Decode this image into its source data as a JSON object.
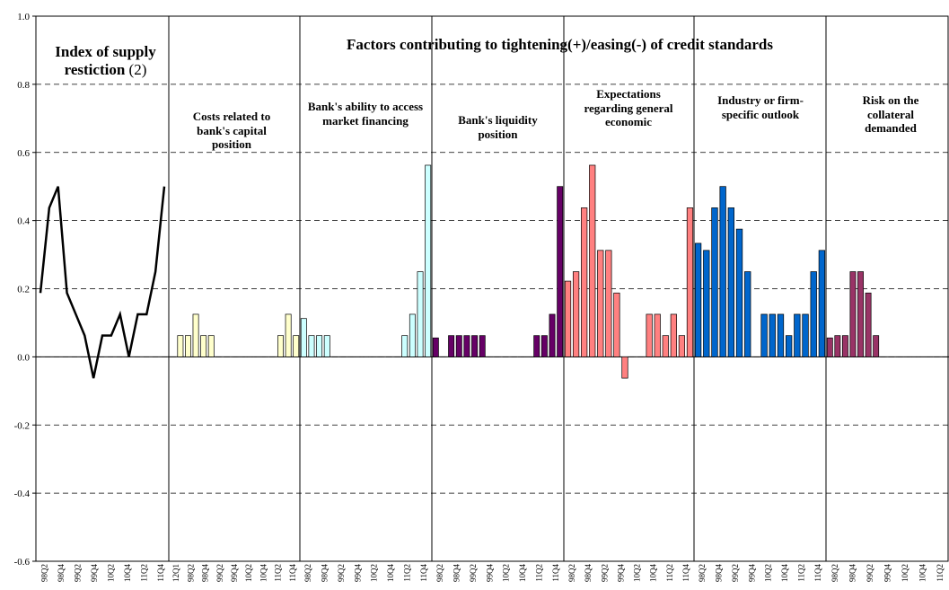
{
  "chart_data": {
    "type": "bar",
    "title": "Factors contributing to tightening(+)/easing(-) of credit standards",
    "ylim": [
      -0.6,
      1.0
    ],
    "ytick_labels": [
      "1.0",
      "0.8",
      "0.6",
      "0.4",
      "0.2",
      "0.0",
      "-0.2",
      "-0.4",
      "-0.6"
    ],
    "grid": "horizontal dashed",
    "panel_labels": [
      {
        "title": "Index of supply restiction",
        "note": "(2)"
      },
      {
        "title": "Costs related to bank's capital position"
      },
      {
        "title": "Bank's ability to access market financing"
      },
      {
        "title": "Bank's liquidity position"
      },
      {
        "title": "Expectations regarding general economic"
      },
      {
        "title": "Industry or firm-specific outlook"
      },
      {
        "title": "Risk on the collateral demanded"
      }
    ],
    "x_tick_labels": [
      [
        "98Q2",
        "98Q4",
        "99Q2",
        "99Q4",
        "10Q2",
        "10Q4",
        "11Q2",
        "11Q4"
      ],
      [
        "12Q1",
        "98Q2",
        "98Q4",
        "99Q2",
        "99Q4",
        "10Q2",
        "10Q4",
        "11Q2",
        "11Q4"
      ],
      [
        "98Q2",
        "98Q4",
        "99Q2",
        "99Q4",
        "10Q2",
        "10Q4",
        "11Q2",
        "11Q4"
      ],
      [
        "98Q2",
        "98Q4",
        "99Q2",
        "99Q4",
        "10Q2",
        "10Q4",
        "11Q2",
        "11Q4"
      ],
      [
        "98Q2",
        "98Q4",
        "99Q2",
        "99Q4",
        "10Q2",
        "10Q4",
        "11Q2",
        "11Q4"
      ],
      [
        "98Q2",
        "98Q4",
        "99Q2",
        "99Q4",
        "10Q2",
        "10Q4",
        "11Q2",
        "11Q4"
      ],
      [
        "98Q2",
        "98Q4",
        "99Q2",
        "99Q4",
        "10Q2",
        "10Q4",
        "11Q2"
      ]
    ],
    "series": [
      {
        "kind": "line",
        "color": "#000000",
        "values": [
          0.1875,
          0.4375,
          0.5,
          0.1875,
          0.125,
          0.0625,
          -0.0625,
          0.0625,
          0.0625,
          0.125,
          0.0,
          0.125,
          0.125,
          0.25,
          0.5
        ]
      },
      {
        "kind": "bar",
        "color": "#FFFFCC",
        "values": [
          0,
          0.0625,
          0.0625,
          0.125,
          0.0625,
          0.0625,
          0,
          0,
          0,
          0,
          0,
          0,
          0,
          0,
          0.0625,
          0.125,
          0.0625
        ]
      },
      {
        "kind": "bar",
        "color": "#CCFFFF",
        "values": [
          0.1125,
          0.0625,
          0.0625,
          0.0625,
          0,
          0,
          0,
          0,
          0,
          0,
          0,
          0,
          0,
          0.0625,
          0.125,
          0.25,
          0.5625
        ]
      },
      {
        "kind": "bar",
        "color": "#660066",
        "values": [
          0.0556,
          0,
          0.0625,
          0.0625,
          0.0625,
          0.0625,
          0.0625,
          0,
          0,
          0,
          0,
          0,
          0,
          0.0625,
          0.0625,
          0.125,
          0.5
        ]
      },
      {
        "kind": "bar",
        "color": "#FF8080",
        "values": [
          0.2222,
          0.25,
          0.4375,
          0.5625,
          0.3125,
          0.3125,
          0.1875,
          -0.0625,
          0,
          0,
          0.125,
          0.125,
          0.0625,
          0.125,
          0.0625,
          0.4375
        ]
      },
      {
        "kind": "bar",
        "color": "#0066CC",
        "values": [
          0.3333,
          0.3125,
          0.4375,
          0.5,
          0.4375,
          0.375,
          0.25,
          0,
          0.125,
          0.125,
          0.125,
          0.0625,
          0.125,
          0.125,
          0.25,
          0.3125
        ]
      },
      {
        "kind": "bar",
        "color": "#993366",
        "values": [
          0.0556,
          0.0625,
          0.0625,
          0.25,
          0.25,
          0.1875,
          0.0625,
          0,
          0,
          0,
          0,
          0,
          0,
          0,
          0,
          0
        ]
      }
    ]
  }
}
